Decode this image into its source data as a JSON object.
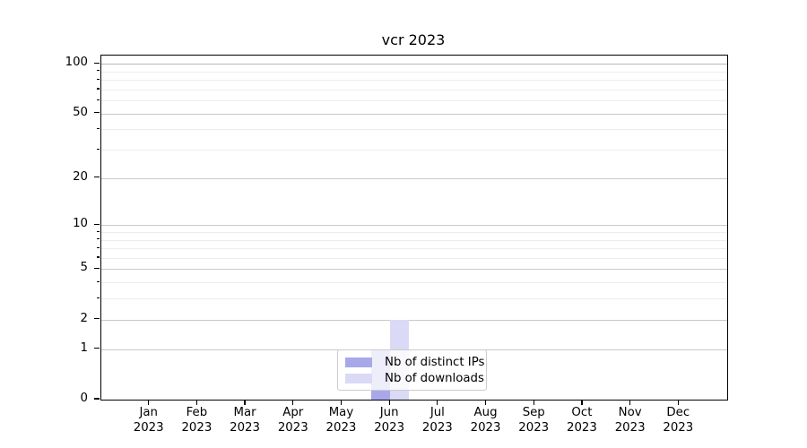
{
  "chart_data": {
    "type": "bar",
    "title": "vcr 2023",
    "categories": [
      "Jan 2023",
      "Feb 2023",
      "Mar 2023",
      "Apr 2023",
      "May 2023",
      "Jun 2023",
      "Jul 2023",
      "Aug 2023",
      "Sep 2023",
      "Oct 2023",
      "Nov 2023",
      "Dec 2023"
    ],
    "series": [
      {
        "name": "Nb of distinct IPs",
        "color": "#a8a8e9",
        "values": [
          0,
          0,
          0,
          0,
          0,
          1,
          0,
          0,
          0,
          0,
          0,
          0
        ]
      },
      {
        "name": "Nb of downloads",
        "color": "#dadaf6",
        "values": [
          0,
          0,
          0,
          0,
          0,
          2,
          0,
          0,
          0,
          0,
          0,
          0
        ]
      }
    ],
    "xlabel": "",
    "ylabel": "",
    "yscale": "log1p",
    "ylim": [
      0,
      115
    ],
    "y_major_ticks": [
      0,
      1,
      2,
      5,
      10,
      20,
      50,
      100
    ],
    "y_minor_ticks": [
      3,
      4,
      6,
      7,
      8,
      9,
      30,
      40,
      60,
      70,
      80,
      90
    ],
    "grid": true,
    "legend_position": "lower center"
  },
  "colors": {
    "grid_major": "#c9c9c9",
    "grid_minor": "#ededed",
    "grid_top_line": "#b9b9b9",
    "spine": "#000000",
    "legend_border": "#cccccc",
    "background": "#ffffff"
  }
}
